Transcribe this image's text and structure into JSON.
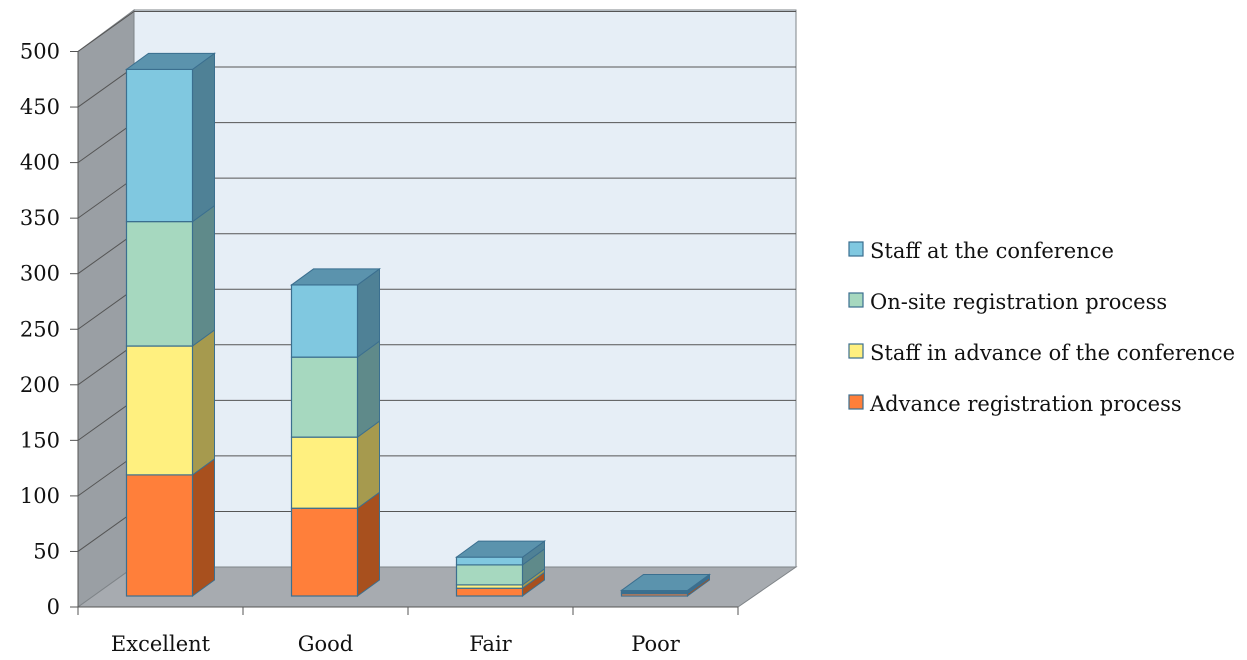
{
  "chart_data": {
    "type": "bar",
    "stacked": true,
    "three_d": true,
    "categories": [
      "Excellent",
      "Good",
      "Fair",
      "Poor"
    ],
    "series": [
      {
        "name": "Advance registration process",
        "values": [
          109,
          79,
          7,
          2
        ],
        "color": "#ff7f3a",
        "side_color": "#a8501e",
        "stroke": "#3b6f8f"
      },
      {
        "name": "Staff in advance of the conference",
        "values": [
          116,
          64,
          3,
          1
        ],
        "color": "#fff07f",
        "side_color": "#a69a4e",
        "stroke": "#3b6f8f"
      },
      {
        "name": "On-site registration process",
        "values": [
          112,
          72,
          18,
          1
        ],
        "color": "#a6d8bf",
        "side_color": "#5f8a8a",
        "stroke": "#3b6f8f"
      },
      {
        "name": "Staff at the conference",
        "values": [
          137,
          65,
          7,
          1
        ],
        "color": "#80c8e0",
        "side_color": "#4f8196",
        "stroke": "#3b6f8f"
      }
    ],
    "top_color": "#5b93ad",
    "ylim": [
      0,
      500
    ],
    "yticks": [
      "0",
      "50",
      "100",
      "150",
      "200",
      "250",
      "300",
      "350",
      "400",
      "450",
      "500"
    ],
    "grid": true,
    "legend_position": "right",
    "wall_color": "#e6eef6",
    "side_wall_color": "#9a9fa4",
    "floor_color": "#a7abb0"
  }
}
